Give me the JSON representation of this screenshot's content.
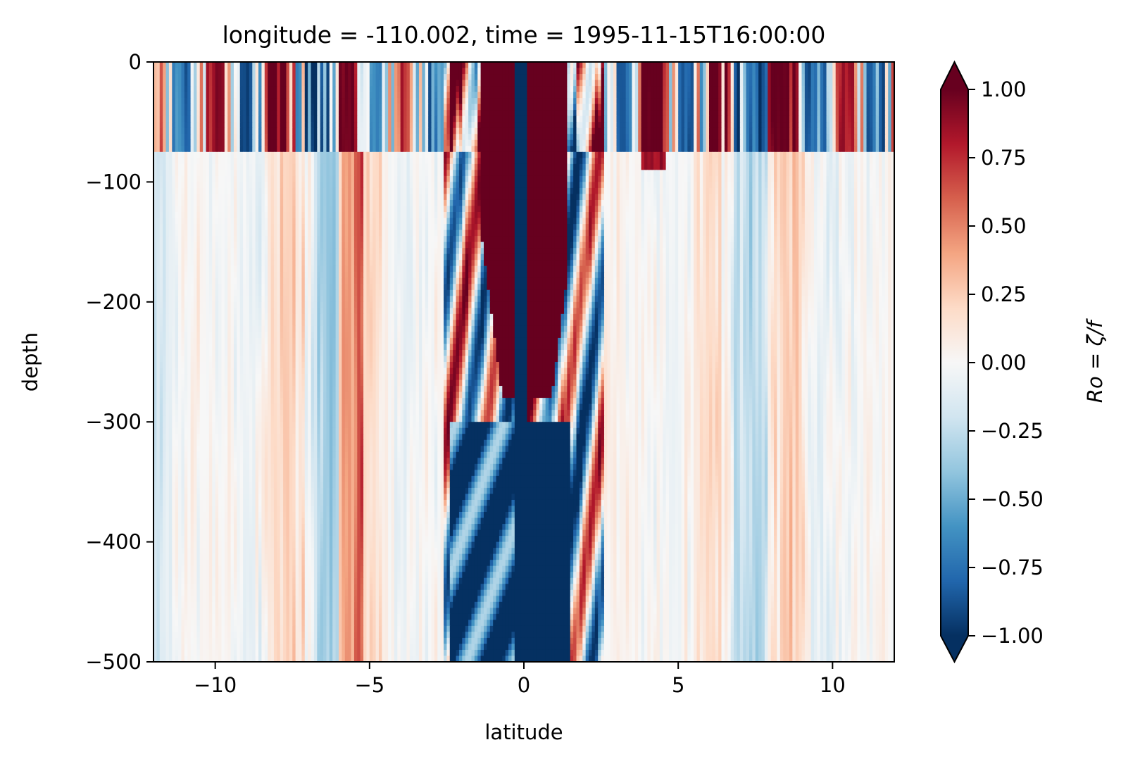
{
  "chart_data": {
    "type": "heatmap",
    "title": "longitude = -110.002, time = 1995-11-15T16:00:00",
    "xlabel": "latitude",
    "ylabel": "depth",
    "xlim": [
      -12,
      12
    ],
    "ylim": [
      -500,
      0
    ],
    "x_ticks": [
      {
        "value": -10,
        "label": "−10"
      },
      {
        "value": -5,
        "label": "−5"
      },
      {
        "value": 0,
        "label": "0"
      },
      {
        "value": 5,
        "label": "5"
      },
      {
        "value": 10,
        "label": "10"
      }
    ],
    "y_ticks": [
      {
        "value": 0,
        "label": "0"
      },
      {
        "value": -100,
        "label": "−100"
      },
      {
        "value": -200,
        "label": "−200"
      },
      {
        "value": -300,
        "label": "−300"
      },
      {
        "value": -400,
        "label": "−400"
      },
      {
        "value": -500,
        "label": "−500"
      }
    ],
    "colorbar": {
      "label": "Ro = ζ/f",
      "colormap": "RdBu_r",
      "vmin": -1.0,
      "vmax": 1.0,
      "extend": "both",
      "ticks": [
        {
          "value": 1.0,
          "label": "1.00"
        },
        {
          "value": 0.75,
          "label": "0.75"
        },
        {
          "value": 0.5,
          "label": "0.50"
        },
        {
          "value": 0.25,
          "label": "0.25"
        },
        {
          "value": 0.0,
          "label": "0.00"
        },
        {
          "value": -0.25,
          "label": "−0.25"
        },
        {
          "value": -0.5,
          "label": "−0.50"
        },
        {
          "value": -0.75,
          "label": "−0.75"
        },
        {
          "value": -1.0,
          "label": "−1.00"
        }
      ]
    },
    "colormap_stops": [
      "#053061",
      "#2166ac",
      "#4393c3",
      "#92c5de",
      "#d1e5f0",
      "#f7f7f7",
      "#fddbc7",
      "#f4a582",
      "#d6604d",
      "#b2182b",
      "#67001f"
    ],
    "field_description_regions": {
      "note": "approximate Rossby number field: strong positive/negative filaments near the equator (latitude -2 to 2) throughout the water column; banded mixed-layer signal above depth -80 across all latitudes; weak alternating vertical streaks elsewhere"
    }
  }
}
